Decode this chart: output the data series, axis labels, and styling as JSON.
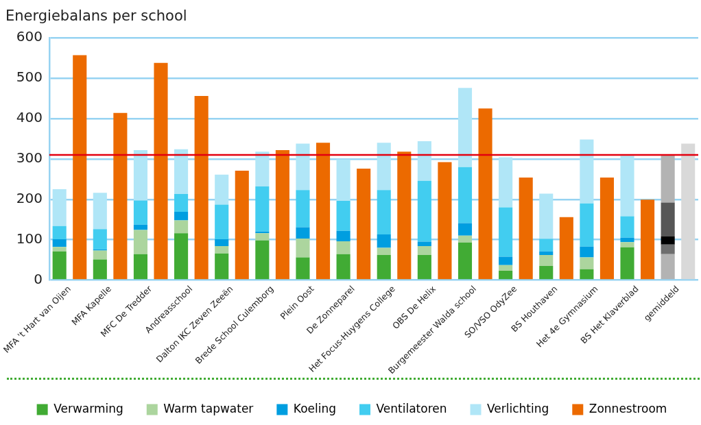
{
  "chart_data": {
    "type": "bar",
    "title": "Energiebalans per school",
    "categories": [
      "MFA 't Hart van Oijen",
      "MFA Kapelle",
      "MFC De Tredder",
      "Andreasschool",
      "Dalton IKC Zeven Zeeën",
      "Brede School Culemborg",
      "Plein Oost",
      "De Zonneparel",
      "Het Focus-Huygens College",
      "OBS De Helix",
      "Burgemeester Walda school",
      "SO/VSO OdyZee",
      "BS Houthaven",
      "Het 4e Gymnasium",
      "BS Het Klaverblad",
      "gemiddeld"
    ],
    "series": [
      {
        "name": "Verwarming",
        "color": "#41ab34",
        "colors": [
          "#41ab34",
          "#41ab34",
          "#41ab34",
          "#41ab34",
          "#41ab34",
          "#41ab34",
          "#41ab34",
          "#41ab34",
          "#41ab34",
          "#41ab34",
          "#41ab34",
          "#41ab34",
          "#41ab34",
          "#41ab34",
          "#41ab34",
          "#b3b3b3"
        ],
        "base": [
          0,
          0,
          0,
          0,
          0,
          0,
          0,
          0,
          0,
          0,
          0,
          0,
          0,
          0,
          0,
          0
        ],
        "values": [
          71,
          51,
          64,
          116,
          66,
          98,
          56,
          64,
          62,
          62,
          93,
          23,
          35,
          27,
          81,
          64
        ]
      },
      {
        "name": "Warm tapwater",
        "color": "#acd59e",
        "colors": [
          "#acd59e",
          "#acd59e",
          "#acd59e",
          "#acd59e",
          "#acd59e",
          "#acd59e",
          "#acd59e",
          "#acd59e",
          "#acd59e",
          "#acd59e",
          "#acd59e",
          "#acd59e",
          "#acd59e",
          "#acd59e",
          "#acd59e",
          "#6e6e6e"
        ],
        "base": [
          71,
          51,
          64,
          116,
          66,
          98,
          56,
          64,
          62,
          62,
          93,
          23,
          35,
          27,
          81,
          64
        ],
        "values": [
          11,
          22,
          60,
          32,
          18,
          18,
          47,
          32,
          18,
          22,
          17,
          14,
          27,
          29,
          13,
          24
        ]
      },
      {
        "name": "Koeling",
        "color": "#009ee0",
        "colors": [
          "#009ee0",
          "#009ee0",
          "#009ee0",
          "#009ee0",
          "#009ee0",
          "#009ee0",
          "#009ee0",
          "#009ee0",
          "#009ee0",
          "#009ee0",
          "#009ee0",
          "#009ee0",
          "#009ee0",
          "#009ee0",
          "#009ee0",
          "#000000"
        ],
        "base": [
          82,
          73,
          124,
          148,
          84,
          116,
          103,
          96,
          80,
          84,
          110,
          37,
          62,
          56,
          94,
          88
        ],
        "values": [
          19,
          3,
          13,
          21,
          17,
          4,
          28,
          26,
          33,
          11,
          31,
          21,
          9,
          27,
          11,
          20
        ]
      },
      {
        "name": "Ventilatoren",
        "color": "#42cdf0",
        "colors": [
          "#42cdf0",
          "#42cdf0",
          "#42cdf0",
          "#42cdf0",
          "#42cdf0",
          "#42cdf0",
          "#42cdf0",
          "#42cdf0",
          "#42cdf0",
          "#42cdf0",
          "#42cdf0",
          "#42cdf0",
          "#42cdf0",
          "#42cdf0",
          "#42cdf0",
          "#575757"
        ],
        "base": [
          101,
          76,
          137,
          169,
          101,
          120,
          131,
          122,
          113,
          95,
          141,
          58,
          71,
          83,
          105,
          108
        ],
        "values": [
          33,
          50,
          60,
          44,
          86,
          112,
          92,
          74,
          110,
          151,
          139,
          122,
          31,
          107,
          53,
          84
        ]
      },
      {
        "name": "Verlichting",
        "color": "#b0e6f7",
        "colors": [
          "#b0e6f7",
          "#b0e6f7",
          "#b0e6f7",
          "#b0e6f7",
          "#b0e6f7",
          "#b0e6f7",
          "#b0e6f7",
          "#b0e6f7",
          "#b0e6f7",
          "#b0e6f7",
          "#b0e6f7",
          "#b0e6f7",
          "#b0e6f7",
          "#b0e6f7",
          "#b0e6f7",
          "#b3b3b3"
        ],
        "base": [
          134,
          126,
          197,
          213,
          187,
          232,
          223,
          196,
          223,
          246,
          280,
          180,
          102,
          190,
          158,
          192
        ],
        "values": [
          91,
          90,
          125,
          111,
          74,
          86,
          115,
          103,
          117,
          98,
          196,
          124,
          112,
          158,
          150,
          117
        ]
      },
      {
        "name": "Zonnestroom",
        "color": "#ec6a00",
        "colors": [
          "#ec6a00",
          "#ec6a00",
          "#ec6a00",
          "#ec6a00",
          "#ec6a00",
          "#ec6a00",
          "#ec6a00",
          "#ec6a00",
          "#ec6a00",
          "#ec6a00",
          "#ec6a00",
          "#ec6a00",
          "#ec6a00",
          "#ec6a00",
          "#ec6a00",
          "#d9d9d9"
        ],
        "values": [
          557,
          414,
          538,
          456,
          271,
          322,
          340,
          276,
          318,
          292,
          425,
          254,
          156,
          254,
          199,
          338
        ]
      }
    ],
    "ylim": [
      0,
      600
    ],
    "yticks": [
      0,
      100,
      200,
      300,
      400,
      500,
      600
    ],
    "grid": "y",
    "legend": "bottom",
    "ref_lines": [
      {
        "axis": "y",
        "value": 310,
        "color": "#e3000f"
      }
    ]
  }
}
